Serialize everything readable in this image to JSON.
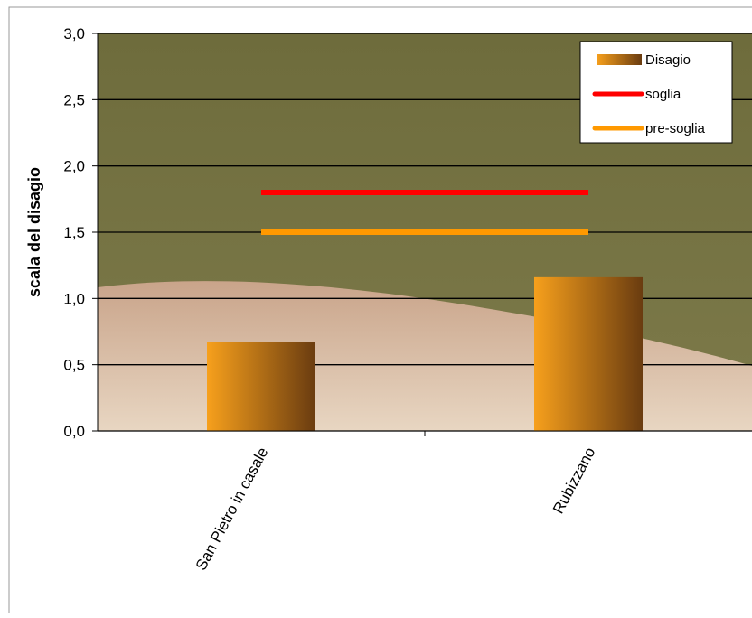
{
  "chart_data": {
    "type": "bar",
    "y_axis_label": "scala del disagio",
    "categories": [
      "San Pietro in casale",
      "Rubizzano"
    ],
    "series": [
      {
        "name": "Disagio",
        "type": "bar",
        "color": "#f7a01c",
        "values": [
          0.67,
          1.16
        ]
      },
      {
        "name": "soglia",
        "type": "line",
        "color": "#ff0000",
        "values": [
          1.8,
          1.8
        ]
      },
      {
        "name": "pre-soglia",
        "type": "line",
        "color": "#ff9900",
        "values": [
          1.5,
          1.5
        ]
      }
    ],
    "ylim": [
      0,
      3
    ],
    "yticks": [
      {
        "value": 0,
        "label": "0,0"
      },
      {
        "value": 0.5,
        "label": "0,5"
      },
      {
        "value": 1,
        "label": "1,0"
      },
      {
        "value": 1.5,
        "label": "1,5"
      },
      {
        "value": 2,
        "label": "2,0"
      },
      {
        "value": 2.5,
        "label": "2,5"
      },
      {
        "value": 3,
        "label": "3,0"
      }
    ],
    "grid": true,
    "legend": "top-right"
  }
}
